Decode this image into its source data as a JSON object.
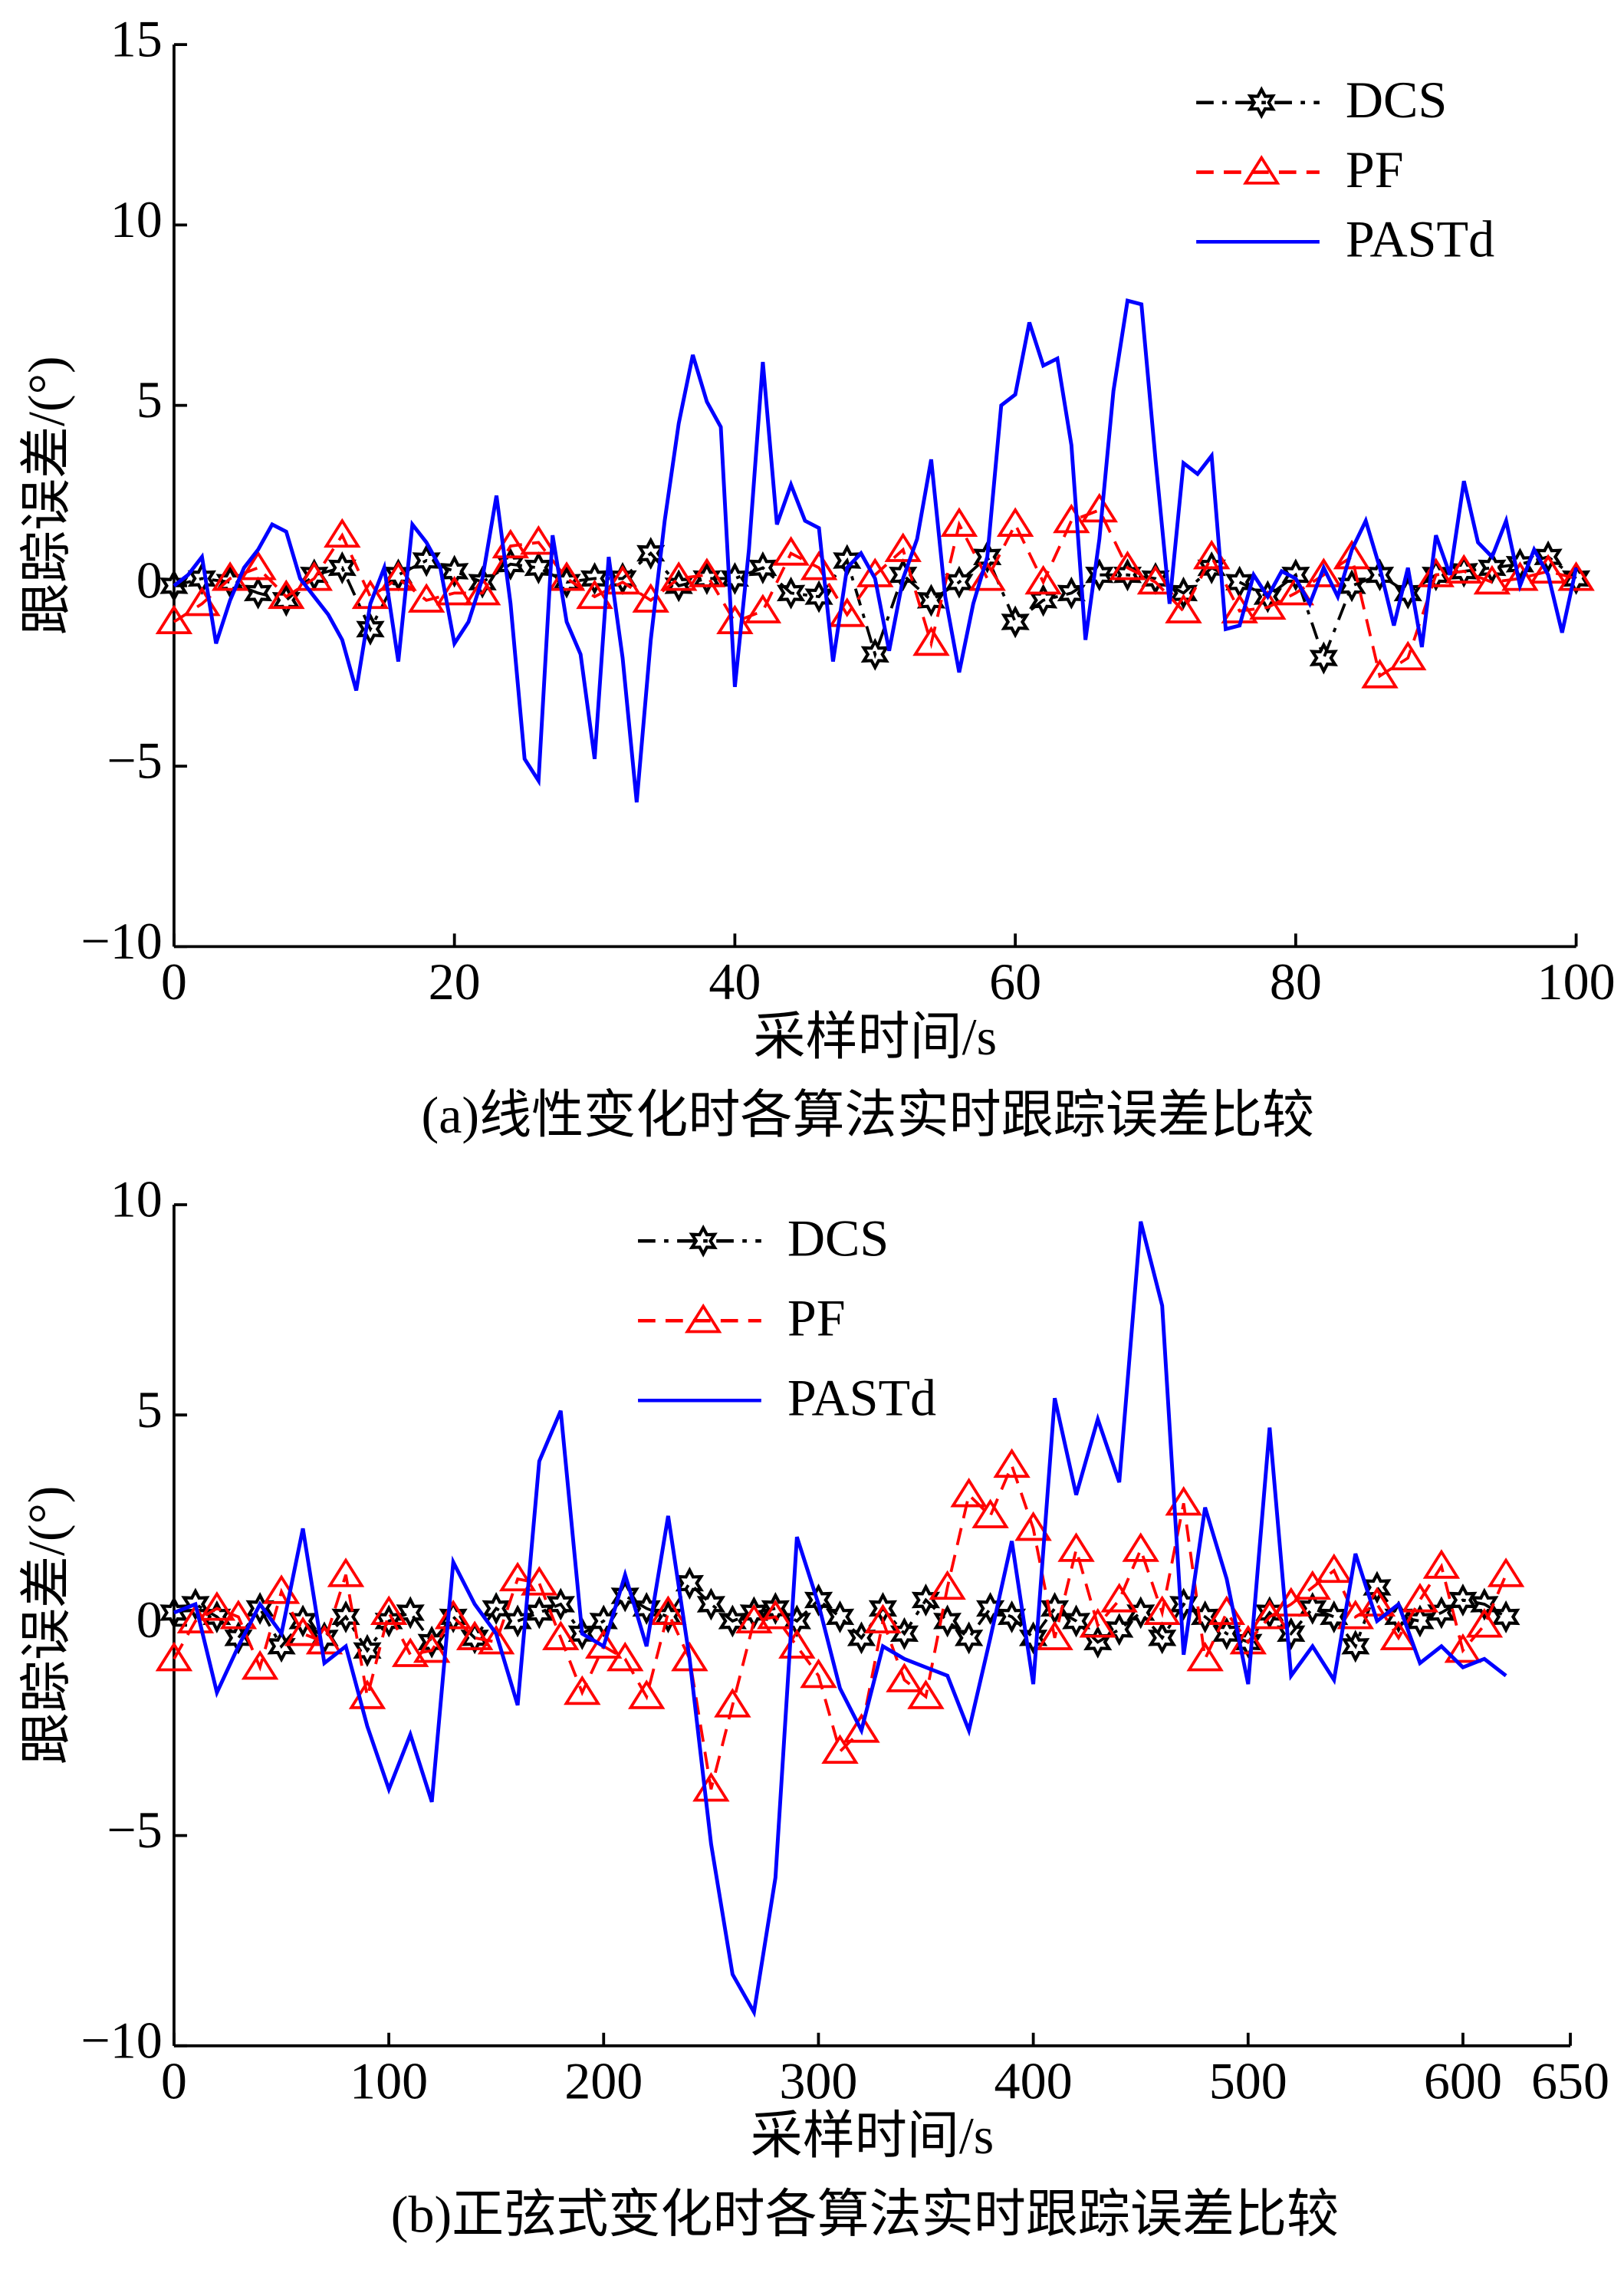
{
  "chart_data": [
    {
      "type": "line",
      "ylabel": "跟踪误差/(°)",
      "xlabel": "采样时间/s",
      "caption": "(a)线性变化时各算法实时跟踪误差比较",
      "xlim": [
        0,
        100
      ],
      "ylim": [
        -10,
        15
      ],
      "xticks": [
        0,
        20,
        40,
        60,
        80,
        100
      ],
      "yticks": [
        {
          "value": -10,
          "label": "−10"
        },
        {
          "value": -5,
          "label": "−5"
        },
        0,
        5,
        10,
        15
      ],
      "legend": "upper right",
      "series": [
        {
          "name": "DCS",
          "color": "#000000",
          "style": "dashdot",
          "marker": "star",
          "x": [
            0,
            2,
            4,
            6,
            8,
            10,
            12,
            14,
            16,
            18,
            20,
            22,
            24,
            26,
            28,
            30,
            32,
            34,
            36,
            38,
            40,
            42,
            44,
            46,
            48,
            50,
            52,
            54,
            56,
            58,
            60,
            62,
            64,
            66,
            68,
            70,
            72,
            74,
            76,
            78,
            80,
            82,
            84,
            86,
            88,
            90,
            92,
            94,
            96,
            98,
            100
          ],
          "values": [
            0,
            0.2,
            0.1,
            -0.2,
            -0.4,
            0.3,
            0.5,
            -1.2,
            0.3,
            0.7,
            0.4,
            0.1,
            0.6,
            0.5,
            0.1,
            0.2,
            0.2,
            0.9,
            0.0,
            0.2,
            0.2,
            0.5,
            -0.2,
            -0.3,
            0.7,
            -1.9,
            0.3,
            -0.4,
            0.1,
            0.8,
            -1.0,
            -0.4,
            -0.2,
            0.3,
            0.3,
            0.2,
            -0.2,
            0.5,
            0.1,
            -0.3,
            0.3,
            -2.0,
            0.0,
            0.3,
            -0.2,
            0.3,
            0.4,
            0.5,
            0.6,
            0.8,
            0.2
          ]
        },
        {
          "name": "PF",
          "color": "#ff0000",
          "style": "dashed",
          "marker": "triangle",
          "x": [
            0,
            2,
            4,
            6,
            8,
            10,
            12,
            14,
            16,
            18,
            20,
            22,
            24,
            26,
            28,
            30,
            32,
            34,
            36,
            38,
            40,
            42,
            44,
            46,
            48,
            50,
            52,
            54,
            56,
            58,
            60,
            62,
            64,
            66,
            68,
            70,
            72,
            74,
            76,
            78,
            80,
            82,
            84,
            86,
            88,
            90,
            92,
            94,
            96,
            98,
            100
          ],
          "values": [
            -1.0,
            -0.5,
            0.2,
            0.5,
            -0.3,
            0.2,
            1.4,
            -0.3,
            0.2,
            -0.4,
            -0.2,
            -0.2,
            1.1,
            1.2,
            0.2,
            -0.3,
            0.1,
            -0.4,
            0.2,
            0.3,
            -1.0,
            -0.7,
            0.9,
            0.5,
            -0.8,
            0.3,
            1.0,
            -1.6,
            1.7,
            0.2,
            1.7,
            0.1,
            1.8,
            2.1,
            0.5,
            0.1,
            -0.7,
            0.8,
            -0.7,
            -0.6,
            -0.2,
            0.3,
            0.8,
            -2.5,
            -2.0,
            0.3,
            0.4,
            0.1,
            0.2,
            0.4,
            0.2
          ]
        },
        {
          "name": "PASTd",
          "color": "#0000ff",
          "style": "solid",
          "marker": "none",
          "x": [
            0,
            1,
            2,
            3,
            4,
            5,
            6,
            7,
            8,
            9,
            10,
            11,
            12,
            13,
            14,
            15,
            16,
            17,
            18,
            19,
            20,
            21,
            22,
            23,
            24,
            25,
            26,
            27,
            28,
            29,
            30,
            31,
            32,
            33,
            34,
            35,
            36,
            37,
            38,
            39,
            40,
            41,
            42,
            43,
            44,
            45,
            46,
            47,
            48,
            49,
            50,
            51,
            52,
            53,
            54,
            55,
            56,
            57,
            58,
            59,
            60,
            61,
            62,
            63,
            64,
            65,
            66,
            67,
            68,
            69,
            70,
            71,
            72,
            73,
            74,
            75,
            76,
            77,
            78,
            79,
            80,
            81,
            82,
            83,
            84,
            85,
            86,
            87,
            88,
            89,
            90,
            91,
            92,
            93,
            94,
            95,
            96,
            97,
            98,
            99,
            100
          ],
          "values": [
            0,
            0.3,
            0.8,
            -1.6,
            -0.4,
            0.5,
            1.0,
            1.7,
            1.5,
            0.2,
            -0.3,
            -0.8,
            -1.5,
            -2.9,
            -0.5,
            0.5,
            -2.1,
            1.7,
            1.2,
            0.5,
            -1.6,
            -1.0,
            0.2,
            2.5,
            -0.5,
            -4.8,
            -5.4,
            1.4,
            -1.0,
            -1.9,
            -4.8,
            0.8,
            -2.0,
            -6.0,
            -1.5,
            1.8,
            4.5,
            6.4,
            5.1,
            4.4,
            -2.8,
            1.0,
            6.2,
            1.7,
            2.8,
            1.8,
            1.6,
            -2.1,
            0.5,
            0.9,
            0.2,
            -1.8,
            0.2,
            1.3,
            3.5,
            -0.3,
            -2.4,
            -0.5,
            0.8,
            5.0,
            5.3,
            7.3,
            6.1,
            6.3,
            3.9,
            -1.5,
            1.3,
            5.4,
            7.9,
            7.8,
            3.5,
            -0.5,
            3.4,
            3.1,
            3.6,
            -1.2,
            -1.1,
            0.3,
            -0.3,
            0.4,
            0.2,
            -0.5,
            0.5,
            -0.3,
            1.0,
            1.8,
            0.5,
            -1.1,
            0.5,
            -1.7,
            1.4,
            0.3,
            2.9,
            1.2,
            0.8,
            1.8,
            0.0,
            1.0,
            0.3,
            -1.3,
            0.5
          ]
        }
      ]
    },
    {
      "type": "line",
      "ylabel": "跟踪误差/(°)",
      "xlabel": "采样时间/s",
      "caption": "(b)正弦式变化时各算法实时跟踪误差比较",
      "xlim": [
        0,
        650
      ],
      "ylim": [
        -10,
        10
      ],
      "xticks": [
        0,
        100,
        200,
        300,
        400,
        500,
        600,
        650
      ],
      "yticks": [
        {
          "value": -10,
          "label": "−10"
        },
        {
          "value": -5,
          "label": "−5"
        },
        0,
        5,
        10
      ],
      "legend": "upper center",
      "series": [
        {
          "name": "DCS",
          "color": "#000000",
          "style": "dashdot",
          "marker": "star",
          "x": [
            0,
            10,
            20,
            30,
            40,
            50,
            60,
            70,
            80,
            90,
            100,
            110,
            120,
            130,
            140,
            150,
            160,
            170,
            180,
            190,
            200,
            210,
            220,
            230,
            240,
            250,
            260,
            270,
            280,
            290,
            300,
            310,
            320,
            330,
            340,
            350,
            360,
            370,
            380,
            390,
            400,
            410,
            420,
            430,
            440,
            450,
            460,
            470,
            480,
            490,
            500,
            510,
            520,
            530,
            540,
            550,
            560,
            570,
            580,
            590,
            600,
            610,
            620
          ],
          "values": [
            0.3,
            0.5,
            0.2,
            -0.3,
            0.4,
            -0.5,
            0.1,
            -0.3,
            0.2,
            -0.6,
            0.1,
            0.3,
            -0.4,
            0.2,
            -0.3,
            0.4,
            0.1,
            0.3,
            0.5,
            -0.2,
            0.1,
            0.7,
            0.4,
            0.2,
            1.0,
            0.5,
            0.1,
            0.3,
            0.4,
            0.1,
            0.6,
            0.2,
            -0.3,
            0.4,
            -0.2,
            0.6,
            0.1,
            -0.3,
            0.4,
            0.2,
            -0.3,
            0.4,
            0.1,
            -0.4,
            -0.1,
            0.3,
            -0.3,
            0.5,
            0.2,
            -0.2,
            -0.4,
            0.3,
            -0.2,
            0.4,
            0.2,
            -0.5,
            0.9,
            0.2,
            0.1,
            0.3,
            0.6,
            0.5,
            0.2
          ]
        },
        {
          "name": "PF",
          "color": "#ff0000",
          "style": "dashed",
          "marker": "triangle",
          "x": [
            0,
            10,
            20,
            30,
            40,
            50,
            60,
            70,
            80,
            90,
            100,
            110,
            120,
            130,
            140,
            150,
            160,
            170,
            180,
            190,
            200,
            210,
            220,
            230,
            240,
            250,
            260,
            270,
            280,
            290,
            300,
            310,
            320,
            330,
            340,
            350,
            360,
            370,
            380,
            390,
            400,
            410,
            420,
            430,
            440,
            450,
            460,
            470,
            480,
            490,
            500,
            510,
            520,
            530,
            540,
            550,
            560,
            570,
            580,
            590,
            600,
            610,
            620
          ],
          "values": [
            -0.8,
            0.1,
            0.4,
            0.2,
            -1.0,
            0.8,
            -0.2,
            -0.4,
            1.2,
            -1.7,
            0.3,
            -0.7,
            -0.6,
            0.2,
            -0.3,
            -0.4,
            1.1,
            1.0,
            -0.3,
            -1.6,
            -0.5,
            -0.8,
            -1.7,
            0.3,
            -0.8,
            -3.9,
            -1.9,
            0.1,
            0.2,
            -0.5,
            -1.2,
            -3.0,
            -2.5,
            0.1,
            -1.3,
            -1.7,
            0.9,
            3.1,
            2.6,
            3.8,
            2.3,
            -0.3,
            1.8,
            0.0,
            0.6,
            1.8,
            0.3,
            2.9,
            -0.8,
            0.3,
            -0.4,
            0.2,
            0.5,
            0.9,
            1.3,
            0.2,
            0.5,
            -0.3,
            0.6,
            1.4,
            -0.6,
            0.0,
            1.2
          ]
        },
        {
          "name": "PASTd",
          "color": "#0000ff",
          "style": "solid",
          "marker": "none",
          "x": [
            0,
            10,
            20,
            30,
            40,
            50,
            60,
            70,
            80,
            90,
            100,
            110,
            120,
            130,
            140,
            150,
            160,
            170,
            180,
            190,
            200,
            210,
            220,
            230,
            240,
            250,
            260,
            270,
            280,
            290,
            300,
            310,
            320,
            330,
            340,
            350,
            360,
            370,
            380,
            390,
            400,
            410,
            420,
            430,
            440,
            450,
            460,
            470,
            480,
            490,
            500,
            510,
            520,
            530,
            540,
            550,
            560,
            570,
            580,
            590,
            600,
            610,
            620
          ],
          "values": [
            0.3,
            0.5,
            -1.6,
            -0.5,
            0.5,
            -0.2,
            2.3,
            -0.9,
            -0.5,
            -2.4,
            -3.9,
            -2.6,
            -4.2,
            1.5,
            0.5,
            -0.2,
            -1.9,
            3.9,
            5.1,
            -0.2,
            -0.5,
            1.2,
            -0.5,
            2.6,
            -0.8,
            -5.2,
            -8.3,
            -9.2,
            -6.0,
            2.1,
            0.5,
            -1.5,
            -2.5,
            -0.5,
            -0.8,
            -1.0,
            -1.2,
            -2.5,
            -0.3,
            2.0,
            -1.4,
            5.4,
            3.1,
            4.9,
            3.4,
            9.6,
            7.6,
            -0.7,
            2.8,
            1.1,
            -1.4,
            4.7,
            -1.2,
            -0.5,
            -1.3,
            1.7,
            0.1,
            0.5,
            -0.9,
            -0.5,
            -1.0,
            -0.8,
            -1.2
          ]
        }
      ]
    }
  ]
}
